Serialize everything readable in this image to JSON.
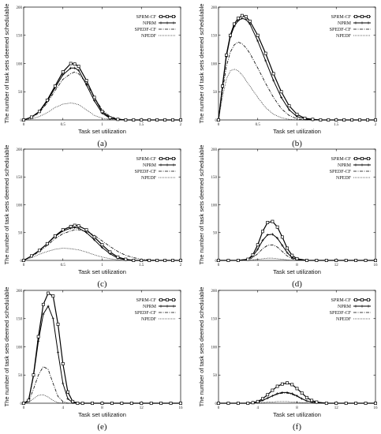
{
  "chart_data": [
    {
      "type": "line",
      "panel_label": "(a)",
      "xlabel": "Task set utilization",
      "ylabel": "The number of task sets deemed schedulable",
      "xlim": [
        0,
        2
      ],
      "ylim": [
        0,
        200
      ],
      "xticks": [
        0,
        0.5,
        1,
        1.5,
        2
      ],
      "xtick_labels": [
        "0",
        "0.5",
        "1",
        "1.5",
        "2"
      ],
      "yticks": [
        0,
        50,
        100,
        150,
        200
      ],
      "legend_position": "top-right",
      "x": [
        0,
        0.1,
        0.2,
        0.3,
        0.4,
        0.5,
        0.6,
        0.65,
        0.7,
        0.8,
        0.9,
        1.0,
        1.1,
        1.2,
        1.3,
        1.4,
        1.5,
        1.6,
        1.7,
        1.8,
        1.9,
        2.0
      ],
      "series": [
        {
          "name": "SPRM-CF",
          "style": "square",
          "values": [
            0,
            5,
            15,
            35,
            60,
            85,
            100,
            99,
            95,
            70,
            40,
            15,
            4,
            1,
            0,
            0,
            0,
            0,
            0,
            0,
            0,
            0
          ]
        },
        {
          "name": "NPRM",
          "style": "plus",
          "values": [
            0,
            5,
            15,
            33,
            57,
            80,
            92,
            92,
            88,
            62,
            34,
            12,
            3,
            1,
            0,
            0,
            0,
            0,
            0,
            0,
            0,
            0
          ]
        },
        {
          "name": "SPEDF-CF",
          "style": "dashdot",
          "values": [
            0,
            4,
            13,
            30,
            52,
            72,
            82,
            85,
            82,
            65,
            40,
            18,
            6,
            2,
            0,
            0,
            0,
            0,
            0,
            0,
            0,
            0
          ]
        },
        {
          "name": "NPEDF",
          "style": "dotted",
          "values": [
            0,
            2,
            6,
            13,
            22,
            28,
            30,
            29,
            27,
            18,
            8,
            3,
            1,
            0,
            0,
            0,
            0,
            0,
            0,
            0,
            0,
            0
          ]
        }
      ]
    },
    {
      "type": "line",
      "panel_label": "(b)",
      "xlabel": "Task set utilization",
      "ylabel": "The number of task sets deemed schedulable",
      "xlim": [
        0,
        2
      ],
      "ylim": [
        0,
        200
      ],
      "xticks": [
        0,
        0.5,
        1,
        1.5,
        2
      ],
      "xtick_labels": [
        "0",
        "0.5",
        "1",
        "1.5",
        "2"
      ],
      "yticks": [
        0,
        50,
        100,
        150,
        200
      ],
      "legend_position": "top-right",
      "x": [
        0,
        0.05,
        0.1,
        0.15,
        0.2,
        0.25,
        0.3,
        0.35,
        0.4,
        0.5,
        0.6,
        0.7,
        0.8,
        0.9,
        1.0,
        1.1,
        1.2,
        1.3,
        1.4,
        1.5,
        1.6,
        1.7,
        1.8,
        1.9,
        2.0
      ],
      "series": [
        {
          "name": "SPRM-CF",
          "style": "square",
          "values": [
            0,
            60,
            115,
            150,
            170,
            180,
            185,
            183,
            175,
            150,
            118,
            82,
            50,
            25,
            10,
            3,
            1,
            0,
            0,
            0,
            0,
            0,
            0,
            0,
            0
          ]
        },
        {
          "name": "NPRM",
          "style": "plus",
          "values": [
            0,
            58,
            112,
            147,
            166,
            176,
            180,
            178,
            170,
            140,
            105,
            70,
            40,
            18,
            6,
            2,
            0,
            0,
            0,
            0,
            0,
            0,
            0,
            0,
            0
          ]
        },
        {
          "name": "SPEDF-CF",
          "style": "dashdot",
          "values": [
            0,
            50,
            95,
            120,
            133,
            138,
            135,
            128,
            118,
            92,
            65,
            40,
            20,
            8,
            2,
            0,
            0,
            0,
            0,
            0,
            0,
            0,
            0,
            0,
            0
          ]
        },
        {
          "name": "NPEDF",
          "style": "dotted",
          "values": [
            0,
            40,
            72,
            87,
            90,
            87,
            80,
            70,
            60,
            40,
            22,
            10,
            4,
            1,
            0,
            0,
            0,
            0,
            0,
            0,
            0,
            0,
            0,
            0,
            0
          ]
        }
      ]
    },
    {
      "type": "line",
      "panel_label": "(c)",
      "xlabel": "Task set utilization",
      "ylabel": "The number of task sets deemed schedulable",
      "xlim": [
        0,
        2
      ],
      "ylim": [
        0,
        200
      ],
      "xticks": [
        0,
        0.5,
        1,
        1.5,
        2
      ],
      "xtick_labels": [
        "0",
        "0.5",
        "1",
        "1.5",
        "2"
      ],
      "yticks": [
        0,
        50,
        100,
        150,
        200
      ],
      "legend_position": "top-right",
      "x": [
        0,
        0.1,
        0.2,
        0.3,
        0.4,
        0.5,
        0.6,
        0.65,
        0.7,
        0.8,
        0.9,
        1.0,
        1.1,
        1.2,
        1.3,
        1.4,
        1.5,
        1.6,
        1.7,
        1.8,
        1.9,
        2.0
      ],
      "series": [
        {
          "name": "SPRM-CF",
          "style": "square",
          "values": [
            0,
            8,
            18,
            30,
            44,
            55,
            61,
            63,
            62,
            55,
            42,
            28,
            15,
            6,
            2,
            0,
            0,
            0,
            0,
            0,
            0,
            0
          ]
        },
        {
          "name": "NPRM",
          "style": "plus",
          "values": [
            0,
            8,
            18,
            30,
            43,
            53,
            58,
            59,
            58,
            50,
            37,
            23,
            12,
            4,
            1,
            0,
            0,
            0,
            0,
            0,
            0,
            0
          ]
        },
        {
          "name": "SPEDF-CF",
          "style": "dashdot",
          "values": [
            0,
            7,
            16,
            27,
            39,
            48,
            53,
            55,
            55,
            52,
            45,
            35,
            25,
            16,
            9,
            5,
            2,
            1,
            0,
            0,
            0,
            0
          ]
        },
        {
          "name": "NPEDF",
          "style": "dotted",
          "values": [
            0,
            5,
            11,
            16,
            20,
            22,
            21,
            20,
            19,
            15,
            10,
            6,
            3,
            1,
            0,
            0,
            0,
            0,
            0,
            0,
            0,
            0
          ]
        }
      ]
    },
    {
      "type": "line",
      "panel_label": "(d)",
      "xlabel": "Task set utilization",
      "ylabel": "The number of task sets deemed schedulable",
      "xlim": [
        0,
        16
      ],
      "ylim": [
        0,
        200
      ],
      "xticks": [
        0,
        4,
        8,
        12,
        16
      ],
      "xtick_labels": [
        "0",
        "4",
        "8",
        "12",
        "16"
      ],
      "yticks": [
        0,
        50,
        100,
        150,
        200
      ],
      "legend_position": "top-right",
      "x": [
        0,
        1,
        2,
        3,
        3.5,
        4,
        4.5,
        5,
        5.5,
        6,
        6.5,
        7,
        7.5,
        8,
        9,
        10,
        11,
        12,
        13,
        14,
        15,
        16
      ],
      "series": [
        {
          "name": "SPRM-CF",
          "style": "square",
          "values": [
            0,
            0,
            0,
            2,
            10,
            28,
            52,
            68,
            70,
            60,
            42,
            22,
            9,
            3,
            0,
            0,
            0,
            0,
            0,
            0,
            0,
            0
          ]
        },
        {
          "name": "NPRM",
          "style": "plus",
          "values": [
            0,
            0,
            0,
            2,
            8,
            20,
            36,
            46,
            47,
            40,
            27,
            14,
            5,
            2,
            0,
            0,
            0,
            0,
            0,
            0,
            0,
            0
          ]
        },
        {
          "name": "SPEDF-CF",
          "style": "dashdot",
          "values": [
            0,
            0,
            0,
            1,
            5,
            12,
            21,
            27,
            28,
            24,
            16,
            8,
            3,
            1,
            0,
            0,
            0,
            0,
            0,
            0,
            0,
            0
          ]
        },
        {
          "name": "NPEDF",
          "style": "dotted",
          "values": [
            0,
            0,
            0,
            0,
            1,
            2,
            3,
            4,
            4,
            3,
            2,
            1,
            0,
            0,
            0,
            0,
            0,
            0,
            0,
            0,
            0,
            0
          ]
        }
      ]
    },
    {
      "type": "line",
      "panel_label": "(e)",
      "xlabel": "Task set utilization",
      "ylabel": "The number of task sets deemed schedulable",
      "xlim": [
        0,
        16
      ],
      "ylim": [
        0,
        200
      ],
      "xticks": [
        0,
        4,
        8,
        12,
        16
      ],
      "xtick_labels": [
        "0",
        "4",
        "8",
        "12",
        "16"
      ],
      "yticks": [
        0,
        50,
        100,
        150,
        200
      ],
      "legend_position": "top-right",
      "x": [
        0,
        0.5,
        1,
        1.5,
        2,
        2.5,
        3,
        3.5,
        4,
        4.5,
        5,
        5.5,
        6,
        7,
        8,
        9,
        10,
        11,
        12,
        13,
        14,
        15,
        16
      ],
      "series": [
        {
          "name": "SPRM-CF",
          "style": "square",
          "values": [
            0,
            5,
            50,
            118,
            175,
            195,
            190,
            140,
            70,
            20,
            3,
            0,
            0,
            0,
            0,
            0,
            0,
            0,
            0,
            0,
            0,
            0,
            0
          ]
        },
        {
          "name": "NPRM",
          "style": "plus",
          "values": [
            0,
            5,
            48,
            110,
            158,
            172,
            150,
            90,
            35,
            8,
            1,
            0,
            0,
            0,
            0,
            0,
            0,
            0,
            0,
            0,
            0,
            0,
            0
          ]
        },
        {
          "name": "SPEDF-CF",
          "style": "dashdot",
          "values": [
            0,
            3,
            25,
            50,
            65,
            60,
            35,
            12,
            3,
            0,
            0,
            0,
            0,
            0,
            0,
            0,
            0,
            0,
            0,
            0,
            0,
            0,
            0
          ]
        },
        {
          "name": "NPEDF",
          "style": "dotted",
          "values": [
            0,
            2,
            8,
            14,
            15,
            11,
            5,
            1,
            0,
            0,
            0,
            0,
            0,
            0,
            0,
            0,
            0,
            0,
            0,
            0,
            0,
            0,
            0
          ]
        }
      ]
    },
    {
      "type": "line",
      "panel_label": "(f)",
      "xlabel": "Task set utilization",
      "ylabel": "The number of task sets deemed schedulable",
      "xlim": [
        0,
        16
      ],
      "ylim": [
        0,
        200
      ],
      "xticks": [
        0,
        4,
        8,
        12,
        16
      ],
      "xtick_labels": [
        "0",
        "4",
        "8",
        "12",
        "16"
      ],
      "yticks": [
        0,
        50,
        100,
        150,
        200
      ],
      "legend_position": "top-right",
      "x": [
        0,
        1,
        2,
        3,
        3.5,
        4,
        4.5,
        5,
        5.5,
        6,
        6.5,
        7,
        7.5,
        8,
        8.5,
        9,
        9.5,
        10,
        11,
        12,
        13,
        14,
        15,
        16
      ],
      "series": [
        {
          "name": "SPRM-CF",
          "style": "square",
          "values": [
            0,
            0,
            0,
            0,
            1,
            3,
            8,
            15,
            23,
            30,
            34,
            36,
            33,
            26,
            18,
            10,
            5,
            2,
            0,
            0,
            0,
            0,
            0,
            0
          ]
        },
        {
          "name": "NPRM",
          "style": "plus",
          "values": [
            0,
            0,
            0,
            0,
            1,
            2,
            5,
            9,
            13,
            17,
            19,
            19,
            17,
            13,
            8,
            4,
            2,
            1,
            0,
            0,
            0,
            0,
            0,
            0
          ]
        },
        {
          "name": "SPEDF-CF",
          "style": "dashdot",
          "values": [
            0,
            0,
            0,
            0,
            1,
            2,
            5,
            9,
            13,
            16,
            18,
            18,
            16,
            12,
            8,
            4,
            2,
            1,
            0,
            0,
            0,
            0,
            0,
            0
          ]
        },
        {
          "name": "NPEDF",
          "style": "dotted",
          "values": [
            0,
            0,
            0,
            0,
            0,
            1,
            1,
            2,
            2,
            3,
            3,
            3,
            2,
            2,
            1,
            1,
            0,
            0,
            0,
            0,
            0,
            0,
            0,
            0
          ]
        }
      ]
    }
  ]
}
